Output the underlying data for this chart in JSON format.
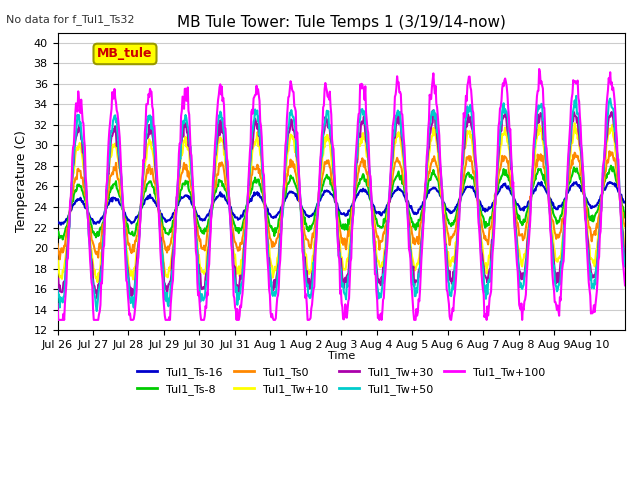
{
  "title": "MB Tule Tower: Tule Temps 1 (3/19/14-now)",
  "subtitle": "No data for f_Tul1_Ts32",
  "ylabel": "Temperature (C)",
  "xlabel": "Time",
  "ylim": [
    12,
    41
  ],
  "yticks": [
    12,
    14,
    16,
    18,
    20,
    22,
    24,
    26,
    28,
    30,
    32,
    34,
    36,
    38,
    40
  ],
  "x_labels": [
    "Jul 26",
    "Jul 27",
    "Jul 28",
    "Jul 29",
    "Jul 30",
    "Jul 31",
    "Aug 1",
    "Aug 2",
    "Aug 3",
    "Aug 4",
    "Aug 5",
    "Aug 6",
    "Aug 7",
    "Aug 8",
    "Aug 9",
    "Aug 10"
  ],
  "legend_box_label": "MB_tule",
  "legend_box_color": "#ffff00",
  "legend_box_text_color": "#cc0000",
  "background_color": "#ffffff",
  "grid_color": "#cccccc",
  "series": [
    {
      "label": "Tul1_Ts-16",
      "color": "#0000cc",
      "linewidth": 1.5
    },
    {
      "label": "Tul1_Ts-8",
      "color": "#00cc00",
      "linewidth": 1.5
    },
    {
      "label": "Tul1_Ts0",
      "color": "#ff8800",
      "linewidth": 1.5
    },
    {
      "label": "Tul1_Tw+10",
      "color": "#ffff00",
      "linewidth": 1.5
    },
    {
      "label": "Tul1_Tw+30",
      "color": "#aa00aa",
      "linewidth": 1.5
    },
    {
      "label": "Tul1_Tw+50",
      "color": "#00cccc",
      "linewidth": 1.5
    },
    {
      "label": "Tul1_Tw+100",
      "color": "#ff00ff",
      "linewidth": 1.5
    }
  ],
  "n_days": 16,
  "pts_per_day": 48,
  "base_temp": 23.5,
  "amplitudes": [
    1.2,
    2.5,
    4.0,
    6.5,
    8.0,
    9.0,
    11.5
  ]
}
